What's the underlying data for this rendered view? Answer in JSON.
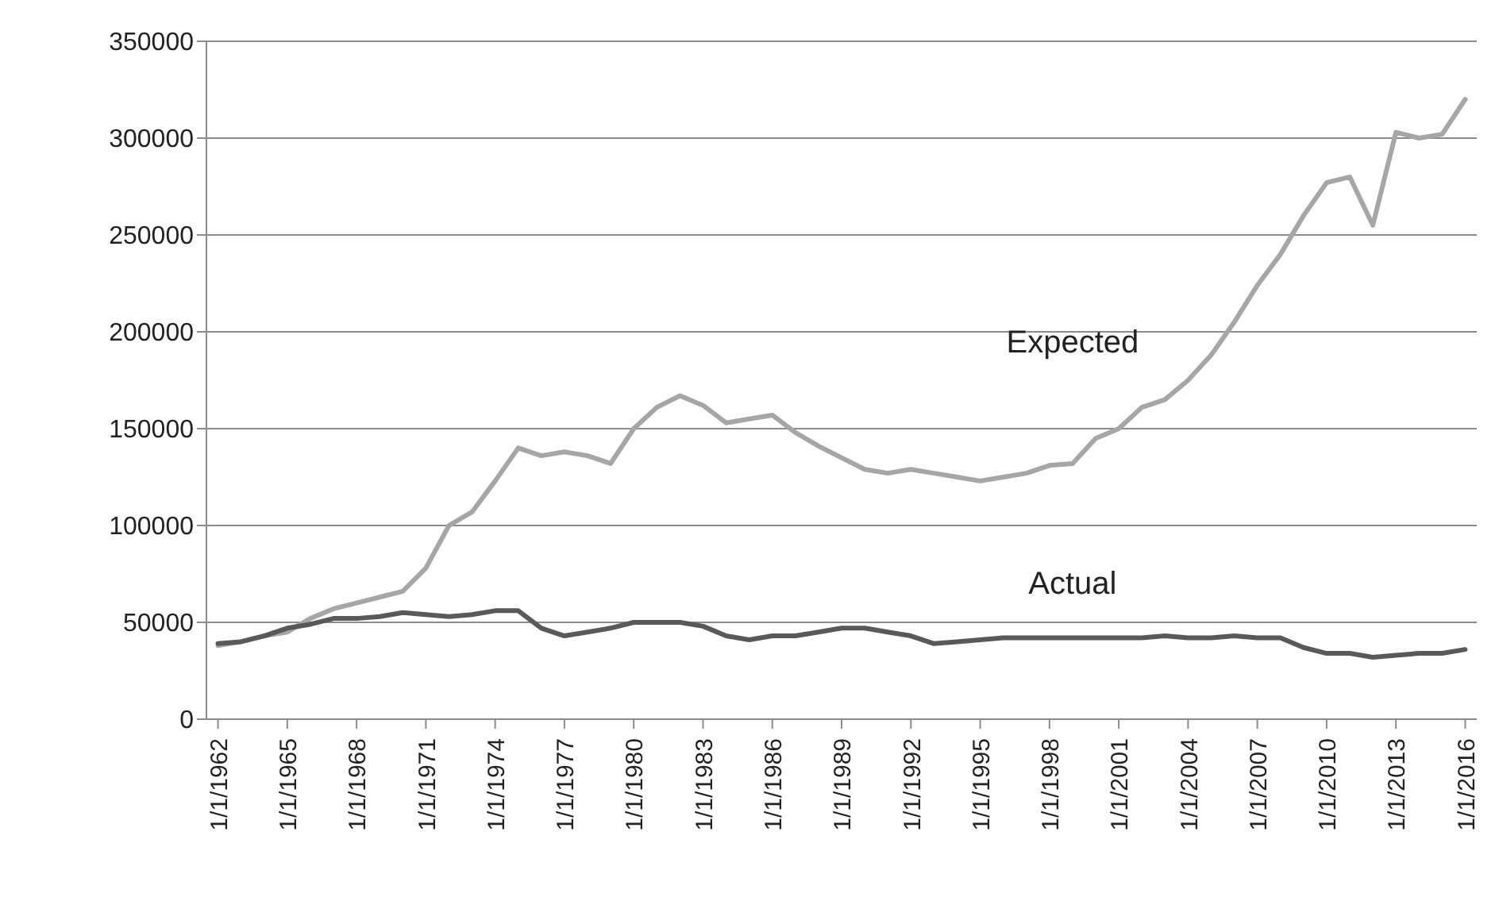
{
  "chart_data": {
    "type": "line",
    "categories": [
      "1/1/1962",
      null,
      null,
      "1/1/1965",
      null,
      null,
      "1/1/1968",
      null,
      null,
      "1/1/1971",
      null,
      null,
      "1/1/1974",
      null,
      null,
      "1/1/1977",
      null,
      null,
      "1/1/1980",
      null,
      null,
      "1/1/1983",
      null,
      null,
      "1/1/1986",
      null,
      null,
      "1/1/1989",
      null,
      null,
      "1/1/1992",
      null,
      null,
      "1/1/1995",
      null,
      null,
      "1/1/1998",
      null,
      null,
      "1/1/2001",
      null,
      null,
      "1/1/2004",
      null,
      null,
      "1/1/2007",
      null,
      null,
      "1/1/2010",
      null,
      null,
      "1/1/2013",
      null,
      null,
      "1/1/2016"
    ],
    "series": [
      {
        "name": "Expected",
        "color": "#a6a6a6",
        "values": [
          38000,
          40000,
          43000,
          45000,
          52000,
          57000,
          60000,
          63000,
          66000,
          78000,
          100000,
          107000,
          123000,
          140000,
          136000,
          138000,
          136000,
          132000,
          150000,
          161000,
          167000,
          162000,
          153000,
          155000,
          157000,
          148000,
          141000,
          135000,
          129000,
          127000,
          129000,
          127000,
          125000,
          123000,
          125000,
          127000,
          131000,
          132000,
          145000,
          150000,
          161000,
          165000,
          175000,
          188000,
          205000,
          224000,
          240000,
          260000,
          277000,
          280000,
          255000,
          303000,
          300000,
          302000,
          320000
        ]
      },
      {
        "name": "Actual",
        "color": "#595959",
        "values": [
          39000,
          40000,
          43000,
          47000,
          49000,
          52000,
          52000,
          53000,
          55000,
          54000,
          53000,
          54000,
          56000,
          56000,
          47000,
          43000,
          45000,
          47000,
          50000,
          50000,
          50000,
          48000,
          43000,
          41000,
          43000,
          43000,
          45000,
          47000,
          47000,
          45000,
          43000,
          39000,
          40000,
          41000,
          42000,
          42000,
          42000,
          42000,
          42000,
          42000,
          42000,
          43000,
          42000,
          42000,
          43000,
          42000,
          42000,
          37000,
          34000,
          34000,
          32000,
          33000,
          34000,
          34000,
          36000
        ]
      }
    ],
    "ylim": [
      0,
      350000
    ],
    "yticks": [
      0,
      50000,
      100000,
      150000,
      200000,
      250000,
      300000,
      350000
    ],
    "grid": "y",
    "legend": false,
    "marker": "none",
    "line_style": "solid"
  }
}
